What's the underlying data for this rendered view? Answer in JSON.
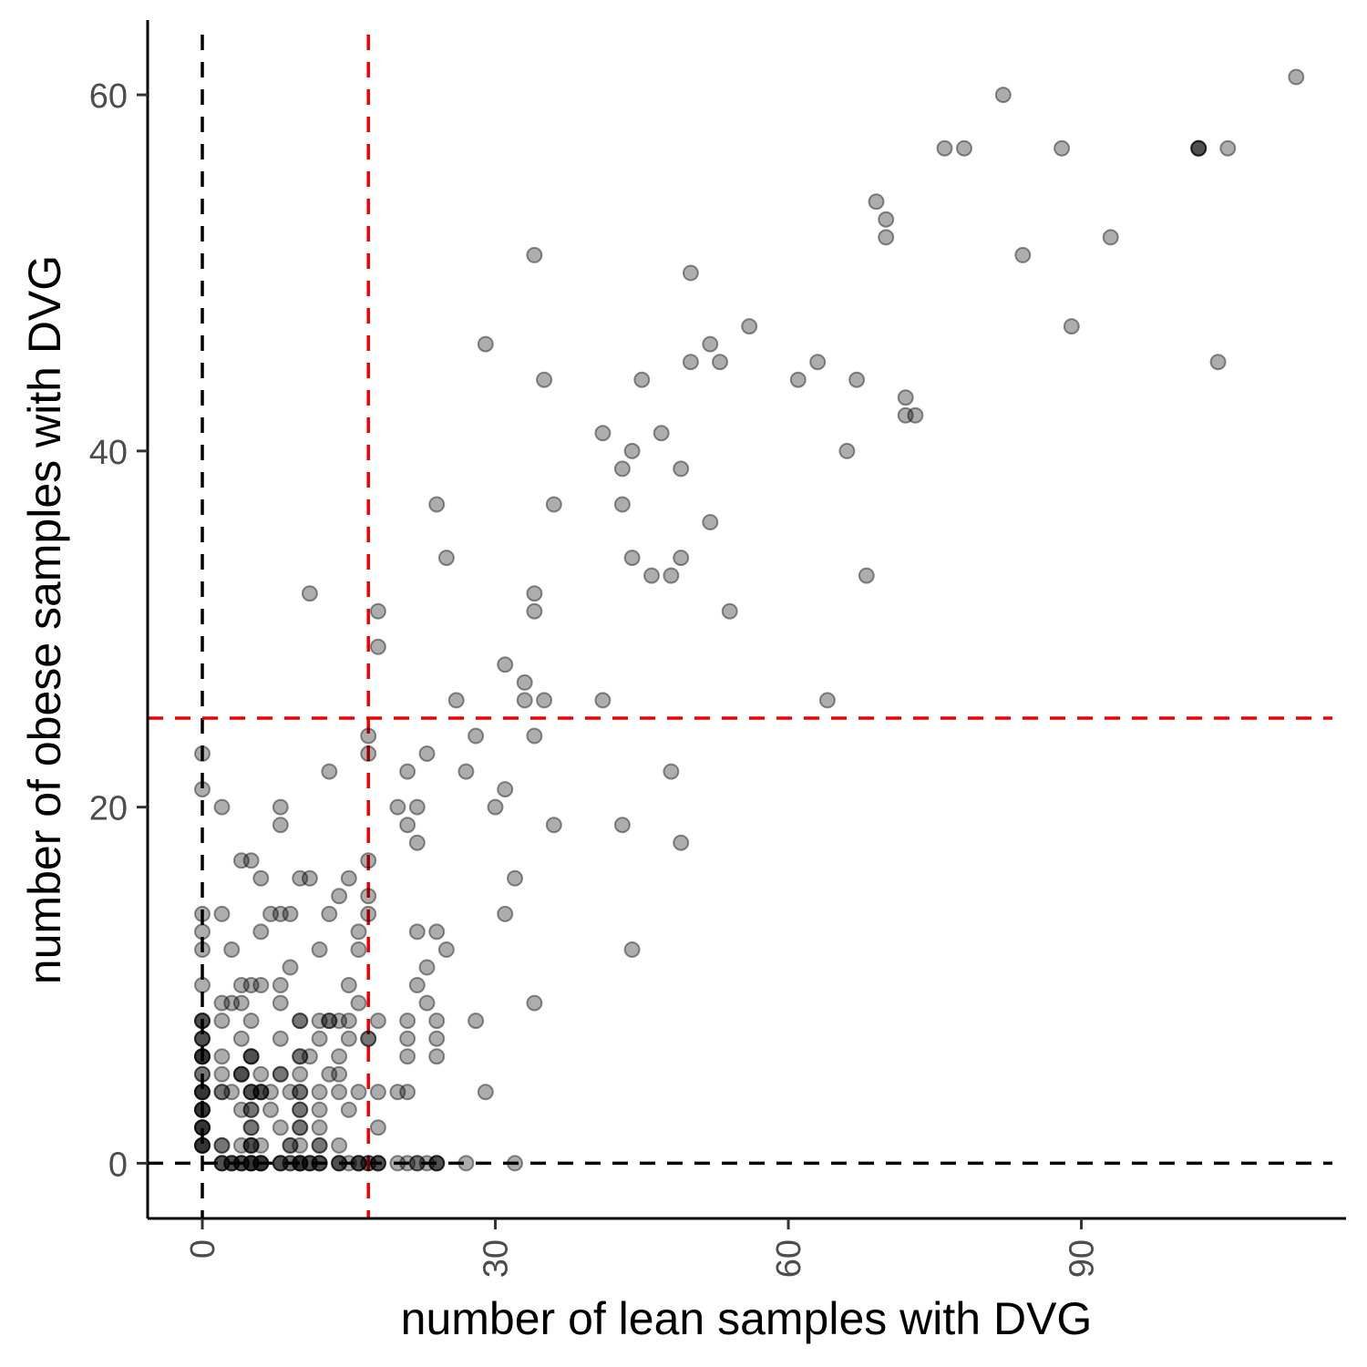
{
  "chart_data": {
    "type": "scatter",
    "title": "",
    "xlabel": "number of lean samples with DVG",
    "ylabel": "number of obese samples with DVG",
    "xlim": [
      -5.6,
      117.1
    ],
    "ylim": [
      -3.1,
      64.2
    ],
    "xticks": [
      0,
      30,
      60,
      90
    ],
    "yticks": [
      0,
      20,
      40,
      60
    ],
    "grid": false,
    "legend": "none",
    "point_color": "#000000",
    "point_opacity": 0.32,
    "reference_lines": [
      {
        "orientation": "vertical",
        "value": 0,
        "color": "#000000"
      },
      {
        "orientation": "horizontal",
        "value": 0,
        "color": "#000000"
      },
      {
        "orientation": "vertical",
        "value": 17,
        "color": "#ee0000"
      },
      {
        "orientation": "horizontal",
        "value": 25,
        "color": "#ee0000"
      }
    ],
    "points": [
      [
        112,
        61
      ],
      [
        82,
        60
      ],
      [
        76,
        57
      ],
      [
        78,
        57
      ],
      [
        88,
        57
      ],
      [
        102,
        57
      ],
      [
        102,
        57
      ],
      [
        102,
        57
      ],
      [
        105,
        57
      ],
      [
        69,
        54
      ],
      [
        70,
        53
      ],
      [
        70,
        52
      ],
      [
        93,
        52
      ],
      [
        84,
        51
      ],
      [
        34,
        51
      ],
      [
        50,
        50
      ],
      [
        56,
        47
      ],
      [
        89,
        47
      ],
      [
        29,
        46
      ],
      [
        52,
        46
      ],
      [
        50,
        45
      ],
      [
        53,
        45
      ],
      [
        63,
        45
      ],
      [
        104,
        45
      ],
      [
        35,
        44
      ],
      [
        45,
        44
      ],
      [
        61,
        44
      ],
      [
        67,
        44
      ],
      [
        72,
        43
      ],
      [
        72,
        42
      ],
      [
        73,
        42
      ],
      [
        41,
        41
      ],
      [
        47,
        41
      ],
      [
        44,
        40
      ],
      [
        66,
        40
      ],
      [
        43,
        39
      ],
      [
        49,
        39
      ],
      [
        24,
        37
      ],
      [
        43,
        37
      ],
      [
        36,
        37
      ],
      [
        52,
        36
      ],
      [
        25,
        34
      ],
      [
        44,
        34
      ],
      [
        49,
        34
      ],
      [
        46,
        33
      ],
      [
        48,
        33
      ],
      [
        68,
        33
      ],
      [
        11,
        32
      ],
      [
        34,
        32
      ],
      [
        18,
        31
      ],
      [
        34,
        31
      ],
      [
        54,
        31
      ],
      [
        18,
        29
      ],
      [
        31,
        28
      ],
      [
        33,
        27
      ],
      [
        26,
        26
      ],
      [
        33,
        26
      ],
      [
        35,
        26
      ],
      [
        41,
        26
      ],
      [
        64,
        26
      ],
      [
        17,
        24
      ],
      [
        28,
        24
      ],
      [
        34,
        24
      ],
      [
        0,
        23
      ],
      [
        17,
        23
      ],
      [
        23,
        23
      ],
      [
        13,
        22
      ],
      [
        21,
        22
      ],
      [
        27,
        22
      ],
      [
        48,
        22
      ],
      [
        0,
        21
      ],
      [
        31,
        21
      ],
      [
        2,
        20
      ],
      [
        8,
        20
      ],
      [
        20,
        20
      ],
      [
        22,
        20
      ],
      [
        30,
        20
      ],
      [
        8,
        19
      ],
      [
        21,
        19
      ],
      [
        36,
        19
      ],
      [
        43,
        19
      ],
      [
        22,
        18
      ],
      [
        49,
        18
      ],
      [
        4,
        17
      ],
      [
        5,
        17
      ],
      [
        17,
        17
      ],
      [
        6,
        16
      ],
      [
        10,
        16
      ],
      [
        11,
        16
      ],
      [
        15,
        16
      ],
      [
        32,
        16
      ],
      [
        14,
        15
      ],
      [
        17,
        15
      ],
      [
        0,
        14
      ],
      [
        2,
        14
      ],
      [
        7,
        14
      ],
      [
        8,
        14
      ],
      [
        9,
        14
      ],
      [
        13,
        14
      ],
      [
        17,
        14
      ],
      [
        31,
        14
      ],
      [
        0,
        13
      ],
      [
        6,
        13
      ],
      [
        16,
        13
      ],
      [
        22,
        13
      ],
      [
        24,
        13
      ],
      [
        0,
        12
      ],
      [
        3,
        12
      ],
      [
        12,
        12
      ],
      [
        16,
        12
      ],
      [
        25,
        12
      ],
      [
        44,
        12
      ],
      [
        9,
        11
      ],
      [
        23,
        11
      ],
      [
        0,
        10
      ],
      [
        4,
        10
      ],
      [
        5,
        10
      ],
      [
        6,
        10
      ],
      [
        8,
        10
      ],
      [
        15,
        10
      ],
      [
        22,
        10
      ],
      [
        2,
        9
      ],
      [
        3,
        9
      ],
      [
        4,
        9
      ],
      [
        8,
        9
      ],
      [
        16,
        9
      ],
      [
        23,
        9
      ],
      [
        34,
        9
      ],
      [
        0,
        8
      ],
      [
        0,
        8
      ],
      [
        0,
        8
      ],
      [
        2,
        8
      ],
      [
        5,
        8
      ],
      [
        10,
        8
      ],
      [
        10,
        8
      ],
      [
        12,
        8
      ],
      [
        13,
        8
      ],
      [
        13,
        8
      ],
      [
        14,
        8
      ],
      [
        15,
        8
      ],
      [
        18,
        8
      ],
      [
        21,
        8
      ],
      [
        24,
        8
      ],
      [
        28,
        8
      ],
      [
        0,
        7
      ],
      [
        0,
        7
      ],
      [
        0,
        7
      ],
      [
        4,
        7
      ],
      [
        8,
        7
      ],
      [
        12,
        7
      ],
      [
        15,
        7
      ],
      [
        17,
        7
      ],
      [
        17,
        7
      ],
      [
        21,
        7
      ],
      [
        24,
        7
      ],
      [
        0,
        6
      ],
      [
        0,
        6
      ],
      [
        0,
        6
      ],
      [
        0,
        6
      ],
      [
        2,
        6
      ],
      [
        5,
        6
      ],
      [
        5,
        6
      ],
      [
        5,
        6
      ],
      [
        10,
        6
      ],
      [
        10,
        6
      ],
      [
        11,
        6
      ],
      [
        14,
        6
      ],
      [
        21,
        6
      ],
      [
        24,
        6
      ],
      [
        0,
        5
      ],
      [
        0,
        5
      ],
      [
        2,
        5
      ],
      [
        4,
        5
      ],
      [
        4,
        5
      ],
      [
        4,
        5
      ],
      [
        6,
        5
      ],
      [
        8,
        5
      ],
      [
        8,
        5
      ],
      [
        10,
        5
      ],
      [
        13,
        5
      ],
      [
        14,
        5
      ],
      [
        0,
        4
      ],
      [
        0,
        4
      ],
      [
        0,
        4
      ],
      [
        0,
        4
      ],
      [
        2,
        4
      ],
      [
        2,
        4
      ],
      [
        3,
        4
      ],
      [
        5,
        4
      ],
      [
        5,
        4
      ],
      [
        5,
        4
      ],
      [
        6,
        4
      ],
      [
        6,
        4
      ],
      [
        6,
        4
      ],
      [
        7,
        4
      ],
      [
        9,
        4
      ],
      [
        10,
        4
      ],
      [
        10,
        4
      ],
      [
        12,
        4
      ],
      [
        14,
        4
      ],
      [
        16,
        4
      ],
      [
        18,
        4
      ],
      [
        20,
        4
      ],
      [
        21,
        4
      ],
      [
        29,
        4
      ],
      [
        0,
        3
      ],
      [
        0,
        3
      ],
      [
        0,
        3
      ],
      [
        0,
        3
      ],
      [
        4,
        3
      ],
      [
        5,
        3
      ],
      [
        5,
        3
      ],
      [
        7,
        3
      ],
      [
        10,
        3
      ],
      [
        10,
        3
      ],
      [
        12,
        3
      ],
      [
        15,
        3
      ],
      [
        0,
        2
      ],
      [
        0,
        2
      ],
      [
        0,
        2
      ],
      [
        0,
        2
      ],
      [
        5,
        2
      ],
      [
        5,
        2
      ],
      [
        8,
        2
      ],
      [
        10,
        2
      ],
      [
        10,
        2
      ],
      [
        12,
        2
      ],
      [
        18,
        2
      ],
      [
        0,
        1
      ],
      [
        0,
        1
      ],
      [
        0,
        1
      ],
      [
        0,
        1
      ],
      [
        2,
        1
      ],
      [
        2,
        1
      ],
      [
        4,
        1
      ],
      [
        5,
        1
      ],
      [
        5,
        1
      ],
      [
        5,
        1
      ],
      [
        6,
        1
      ],
      [
        9,
        1
      ],
      [
        9,
        1
      ],
      [
        10,
        1
      ],
      [
        12,
        1
      ],
      [
        12,
        1
      ],
      [
        14,
        1
      ],
      [
        2,
        0
      ],
      [
        2,
        0
      ],
      [
        2,
        0
      ],
      [
        3,
        0
      ],
      [
        3,
        0
      ],
      [
        3,
        0
      ],
      [
        4,
        0
      ],
      [
        4,
        0
      ],
      [
        4,
        0
      ],
      [
        5,
        0
      ],
      [
        5,
        0
      ],
      [
        5,
        0
      ],
      [
        5,
        0
      ],
      [
        6,
        0
      ],
      [
        6,
        0
      ],
      [
        6,
        0
      ],
      [
        6,
        0
      ],
      [
        8,
        0
      ],
      [
        8,
        0
      ],
      [
        8,
        0
      ],
      [
        9,
        0
      ],
      [
        9,
        0
      ],
      [
        10,
        0
      ],
      [
        10,
        0
      ],
      [
        10,
        0
      ],
      [
        10,
        0
      ],
      [
        11,
        0
      ],
      [
        11,
        0
      ],
      [
        11,
        0
      ],
      [
        12,
        0
      ],
      [
        12,
        0
      ],
      [
        12,
        0
      ],
      [
        14,
        0
      ],
      [
        14,
        0
      ],
      [
        14,
        0
      ],
      [
        15,
        0
      ],
      [
        16,
        0
      ],
      [
        16,
        0
      ],
      [
        16,
        0
      ],
      [
        17,
        0
      ],
      [
        17,
        0
      ],
      [
        18,
        0
      ],
      [
        18,
        0
      ],
      [
        18,
        0
      ],
      [
        20,
        0
      ],
      [
        21,
        0
      ],
      [
        22,
        0
      ],
      [
        22,
        0
      ],
      [
        23,
        0
      ],
      [
        24,
        0
      ],
      [
        24,
        0
      ],
      [
        24,
        0
      ],
      [
        27,
        0
      ],
      [
        32,
        0
      ]
    ]
  }
}
